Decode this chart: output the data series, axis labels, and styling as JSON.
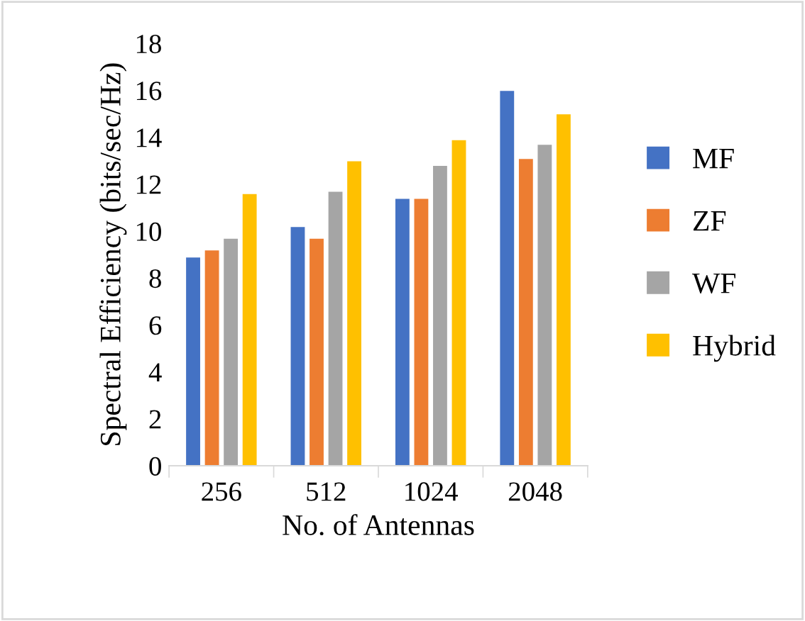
{
  "chart_data": {
    "type": "bar",
    "xlabel": "No. of Antennas",
    "ylabel": "Spectral Efficiency (bits/sec/Hz)",
    "categories": [
      "256",
      "512",
      "1024",
      "2048"
    ],
    "series": [
      {
        "name": "MF",
        "color": "#4472c4",
        "values": [
          8.9,
          10.2,
          11.4,
          16.0
        ]
      },
      {
        "name": "ZF",
        "color": "#ed7d31",
        "values": [
          9.2,
          9.7,
          11.4,
          13.1
        ]
      },
      {
        "name": "WF",
        "color": "#a5a5a5",
        "values": [
          9.7,
          11.7,
          12.8,
          13.7
        ]
      },
      {
        "name": "Hybrid",
        "color": "#ffc000",
        "values": [
          11.6,
          13.0,
          13.9,
          15.0
        ]
      }
    ],
    "ylim": [
      0,
      18
    ],
    "yticks": [
      0,
      2,
      4,
      6,
      8,
      10,
      12,
      14,
      16,
      18
    ],
    "grid": false,
    "legend": "right"
  }
}
